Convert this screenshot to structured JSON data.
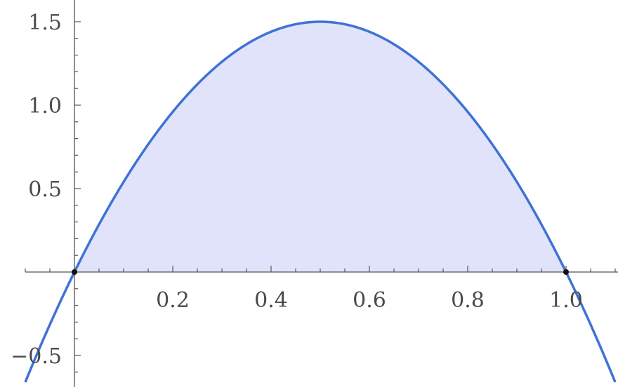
{
  "chart_data": {
    "type": "area",
    "title": "",
    "xlabel": "",
    "ylabel": "",
    "function": "y = 6x(1 - x)",
    "xlim": [
      -0.1,
      1.1
    ],
    "ylim": [
      -0.69,
      1.51
    ],
    "fill_between_x": [
      0,
      1
    ],
    "x_ticks": [
      0.2,
      0.4,
      0.6,
      0.8,
      1.0
    ],
    "x_tick_labels": [
      "0.2",
      "0.4",
      "0.6",
      "0.8",
      "1.0"
    ],
    "y_ticks": [
      -0.5,
      0.5,
      1.0,
      1.5
    ],
    "y_tick_labels": [
      "−0.5",
      "0.5",
      "1.0",
      "1.5"
    ],
    "points": [
      {
        "x": 0,
        "y": 0
      },
      {
        "x": 1,
        "y": 0
      }
    ],
    "grid": false,
    "colors": {
      "curve": "#3f72d6",
      "fill": "#e1e3fa",
      "axis": "#555555",
      "point": "#111111"
    }
  }
}
